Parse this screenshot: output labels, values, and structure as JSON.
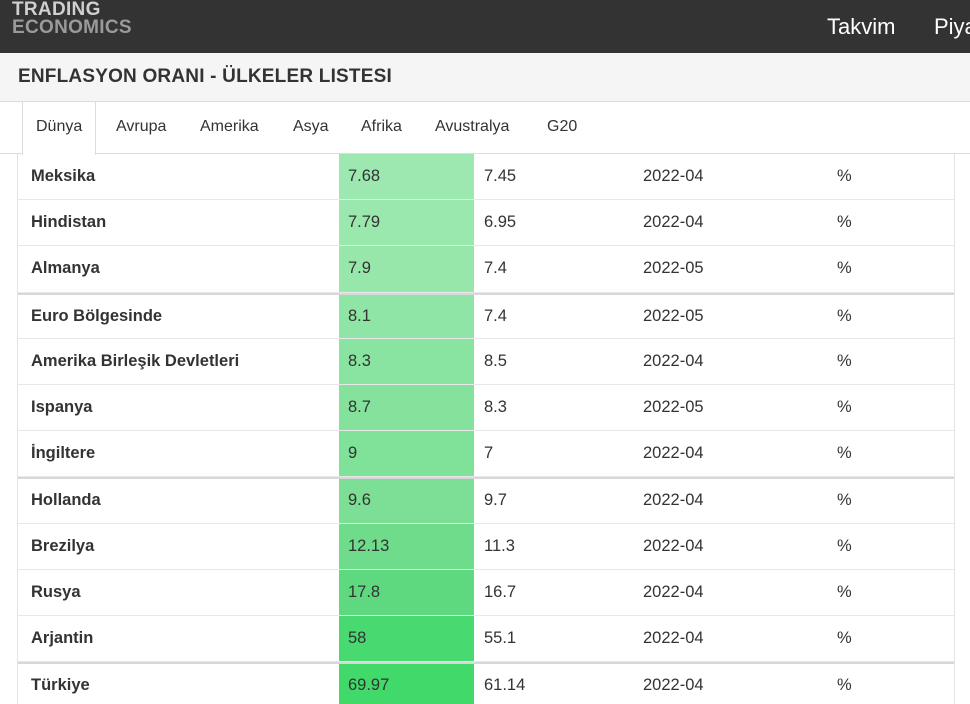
{
  "brand": {
    "line1": "TRADING",
    "line2": "ECONOMICS"
  },
  "nav": {
    "items": [
      "Takvim",
      "Piya"
    ]
  },
  "page": {
    "title": "ENFLASYON ORANI - ÜLKELER LISTESI"
  },
  "tabs": [
    "Dünya",
    "Avrupa",
    "Amerika",
    "Asya",
    "Afrika",
    "Avustralya",
    "G20"
  ],
  "active_tab": "Dünya",
  "colors": {
    "topbar": "#333333",
    "heat_low": "#9ee9b1",
    "heat_high": "#42d96b"
  },
  "rows": [
    {
      "country": "Meksika",
      "last": "7.68",
      "previous": "7.45",
      "reference": "2022-04",
      "unit": "%",
      "heat": "#9ce8b0"
    },
    {
      "country": "Hindistan",
      "last": "7.79",
      "previous": "6.95",
      "reference": "2022-04",
      "unit": "%",
      "heat": "#9ae8ae"
    },
    {
      "country": "Almanya",
      "last": "7.9",
      "previous": "7.4",
      "reference": "2022-05",
      "unit": "%",
      "heat": "#97e7ab"
    },
    {
      "country": "Euro Bölgesinde",
      "last": "8.1",
      "previous": "7.4",
      "reference": "2022-05",
      "unit": "%",
      "heat": "#8fe5a5"
    },
    {
      "country": "Amerika Birleşik Devletleri",
      "last": "8.3",
      "previous": "8.5",
      "reference": "2022-04",
      "unit": "%",
      "heat": "#8ae4a1"
    },
    {
      "country": "Ispanya",
      "last": "8.7",
      "previous": "8.3",
      "reference": "2022-05",
      "unit": "%",
      "heat": "#84e29c"
    },
    {
      "country": "İngiltere",
      "last": "9",
      "previous": "7",
      "reference": "2022-04",
      "unit": "%",
      "heat": "#80e199"
    },
    {
      "country": "Hollanda",
      "last": "9.6",
      "previous": "9.7",
      "reference": "2022-04",
      "unit": "%",
      "heat": "#7cdf95"
    },
    {
      "country": "Brezilya",
      "last": "12.13",
      "previous": "11.3",
      "reference": "2022-04",
      "unit": "%",
      "heat": "#6edc8a"
    },
    {
      "country": "Rusya",
      "last": "17.8",
      "previous": "16.7",
      "reference": "2022-04",
      "unit": "%",
      "heat": "#5fd97f"
    },
    {
      "country": "Arjantin",
      "last": "58",
      "previous": "55.1",
      "reference": "2022-04",
      "unit": "%",
      "heat": "#48d970"
    },
    {
      "country": "Türkiye",
      "last": "69.97",
      "previous": "61.14",
      "reference": "2022-04",
      "unit": "%",
      "heat": "#42d96b"
    }
  ]
}
